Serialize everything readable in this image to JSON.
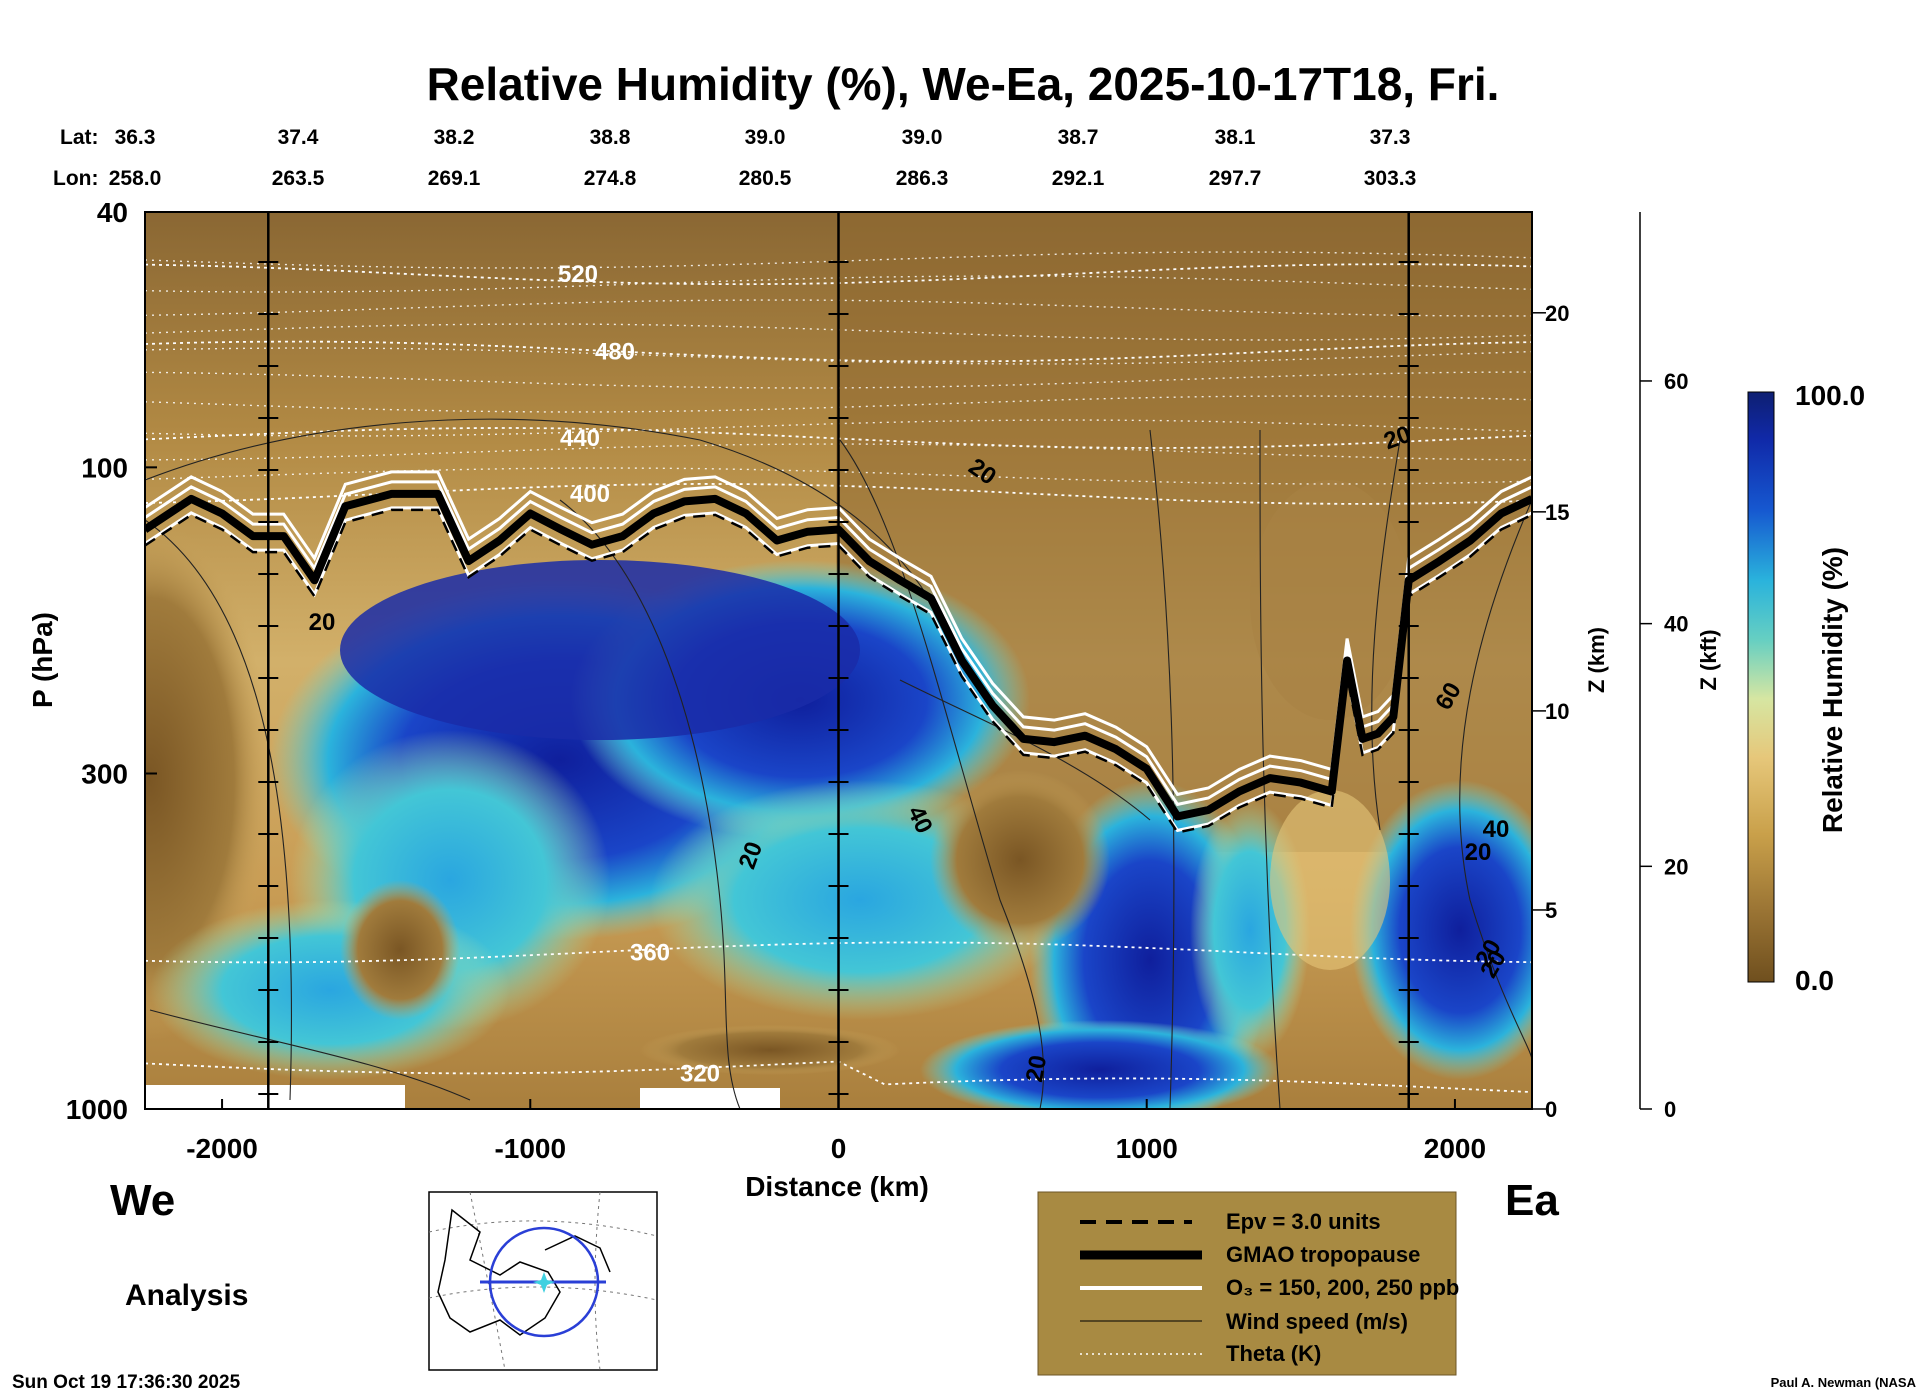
{
  "title": "Relative Humidity (%), We-Ea, 2025-10-17T18, Fri.",
  "coords": {
    "lat_label": "Lat:",
    "lon_label": "Lon:",
    "lat": [
      "36.3",
      "37.4",
      "38.2",
      "38.8",
      "39.0",
      "39.0",
      "38.7",
      "38.1",
      "37.3"
    ],
    "lon": [
      "258.0",
      "263.5",
      "269.1",
      "274.8",
      "280.5",
      "286.3",
      "292.1",
      "297.7",
      "303.3"
    ]
  },
  "chart_data": {
    "type": "heatmap",
    "title": "Relative Humidity (%), We-Ea, 2025-10-17T18, Fri.",
    "xlabel": "Distance (km)",
    "ylabel": "P (hPa)",
    "xlim": [
      -2250,
      2250
    ],
    "x_ticks": [
      -2000,
      -1000,
      0,
      1000,
      2000
    ],
    "x_tick_labels": [
      "-2000",
      "-1000",
      "0",
      "1000",
      "2000"
    ],
    "ylim": [
      1000,
      40
    ],
    "y_scale": "log",
    "y_ticks": [
      40,
      100,
      300,
      1000
    ],
    "y_tick_labels": [
      "40",
      "100",
      "300",
      "1000"
    ],
    "z_km": {
      "label": "Z (km)",
      "ticks": [
        0,
        5,
        10,
        15,
        20
      ],
      "tick_labels": [
        "0",
        "5",
        "10",
        "15",
        "20"
      ]
    },
    "z_kft": {
      "label": "Z (kft)",
      "ticks": [
        0,
        20,
        40,
        60
      ],
      "tick_labels": [
        "0",
        "20",
        "40",
        "60"
      ]
    },
    "colorbar": {
      "label": "Relative Humidity (%)",
      "min": 0.0,
      "max": 100.0,
      "min_label": "0.0",
      "max_label": "100.0"
    },
    "vertical_markers_km": [
      -1850,
      0,
      1850
    ],
    "tropopause_hpa": {
      "x": [
        -2250,
        -2100,
        -2000,
        -1900,
        -1800,
        -1700,
        -1600,
        -1450,
        -1300,
        -1200,
        -1100,
        -1000,
        -900,
        -800,
        -700,
        -600,
        -500,
        -400,
        -300,
        -200,
        -100,
        0,
        100,
        200,
        300,
        400,
        500,
        600,
        700,
        800,
        900,
        1000,
        1100,
        1200,
        1300,
        1400,
        1500,
        1600,
        1650,
        1700,
        1750,
        1800,
        1850,
        1950,
        2050,
        2150,
        2250
      ],
      "p": [
        125,
        112,
        118,
        128,
        128,
        150,
        115,
        110,
        110,
        140,
        130,
        118,
        125,
        132,
        128,
        118,
        113,
        112,
        118,
        130,
        126,
        125,
        140,
        150,
        160,
        200,
        235,
        265,
        268,
        262,
        275,
        295,
        350,
        342,
        320,
        305,
        310,
        320,
        200,
        265,
        260,
        245,
        150,
        140,
        130,
        118,
        112
      ]
    },
    "theta_K": {
      "levels": [
        320,
        360,
        400,
        440,
        480,
        520
      ],
      "level_labels": [
        "320",
        "360",
        "400",
        "440",
        "480",
        "520"
      ]
    },
    "wind_speed_labels": [
      "20",
      "20",
      "20",
      "20",
      "40",
      "20",
      "20",
      "20",
      "60",
      "40",
      "20"
    ],
    "legend": [
      {
        "style": "dashed",
        "label": "Epv = 3.0 units"
      },
      {
        "style": "thick",
        "label": "GMAO tropopause"
      },
      {
        "style": "white",
        "label": "O₃ = 150, 200, 250 ppb"
      },
      {
        "style": "thin",
        "label": "Wind speed (m/s)"
      },
      {
        "style": "dotted",
        "label": "Theta (K)"
      }
    ]
  },
  "labels": {
    "west": "We",
    "east": "Ea",
    "analysis": "Analysis",
    "timestamp": "Sun Oct 19 17:36:30 2025",
    "credit": "Paul A. Newman (NASA"
  },
  "colors": {
    "legend_bg": "#a88a42",
    "rh_low": "#6f4f1e",
    "rh_mid": "#e7d78f",
    "rh_cyan": "#3fc7d3",
    "rh_high": "#10239a"
  }
}
